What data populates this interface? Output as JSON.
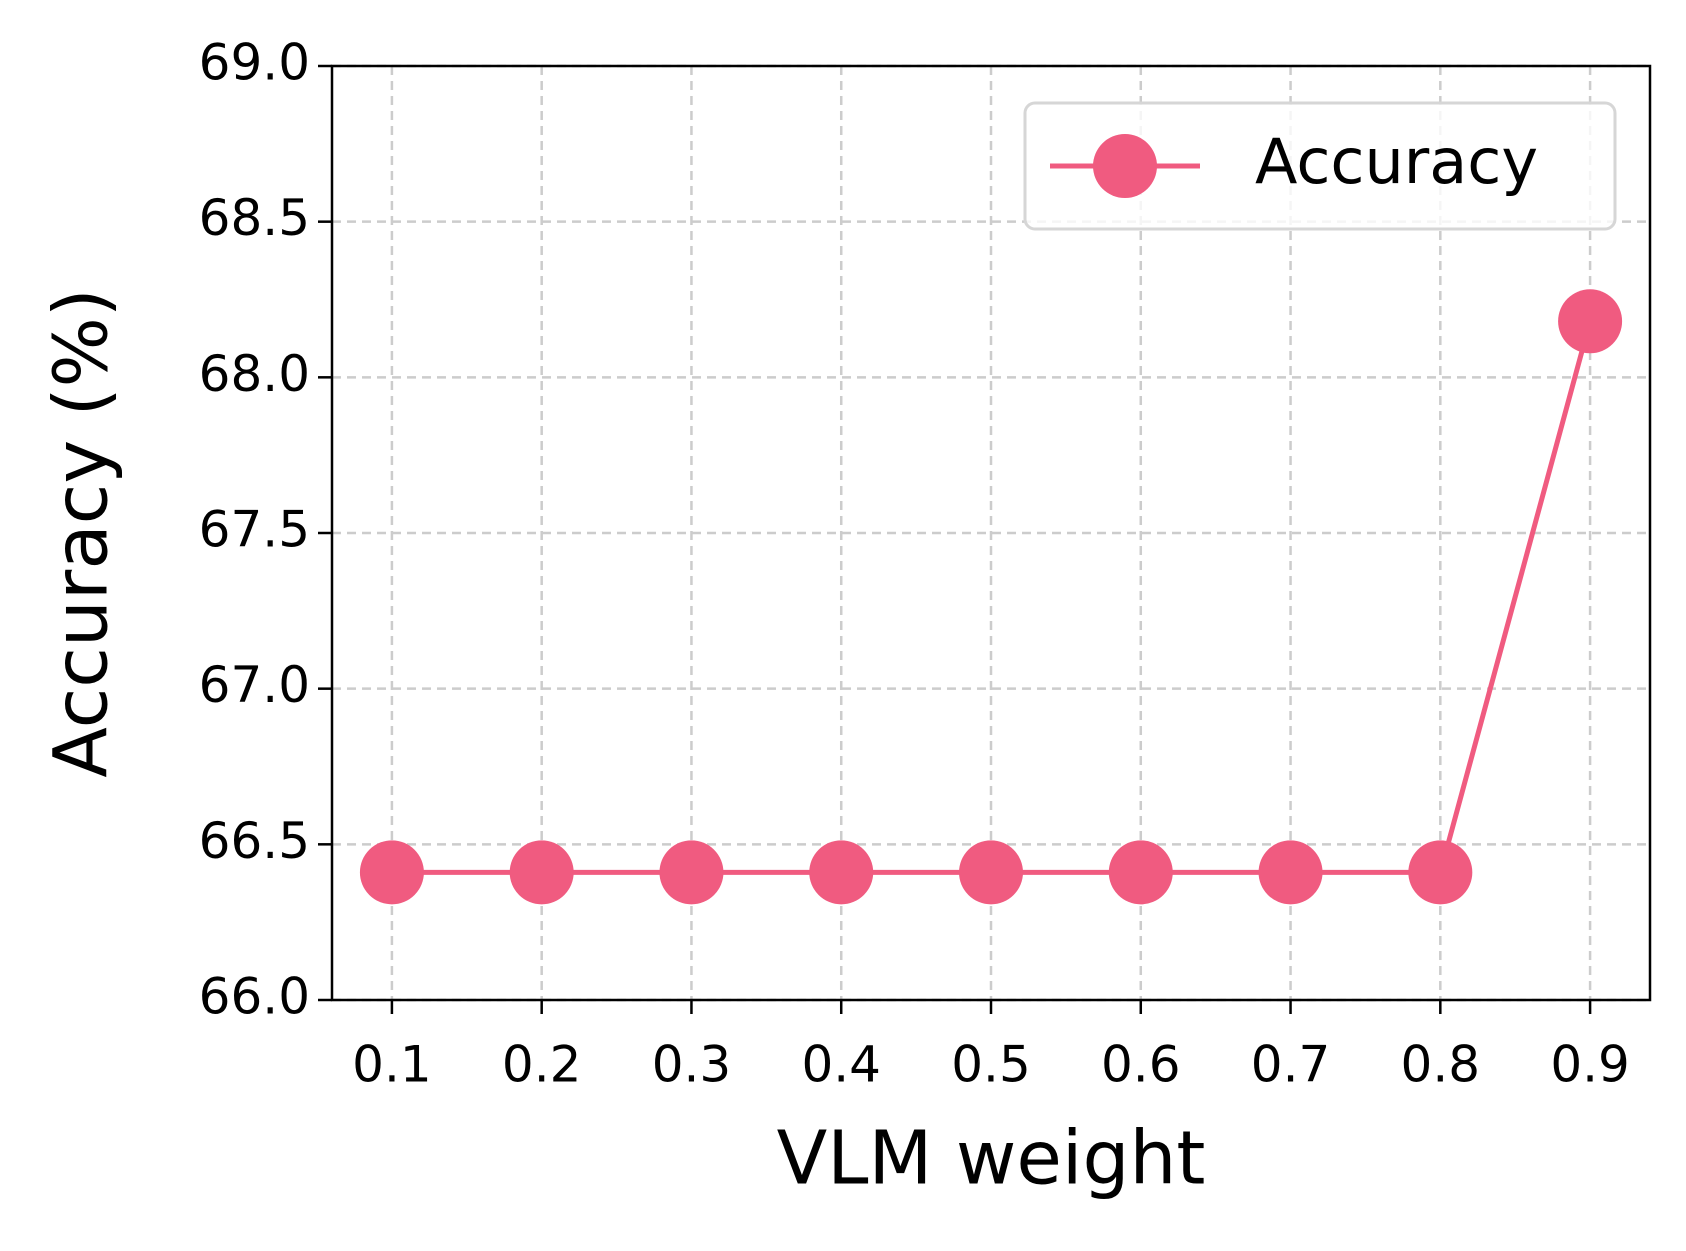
{
  "chart_data": {
    "type": "line",
    "xlabel": "VLM weight",
    "ylabel": "Accuracy (%)",
    "x": [
      0.1,
      0.2,
      0.3,
      0.4,
      0.5,
      0.6,
      0.7,
      0.8,
      0.9
    ],
    "series": [
      {
        "name": "Accuracy",
        "color": "#f05b80",
        "values": [
          66.41,
          66.41,
          66.41,
          66.41,
          66.41,
          66.41,
          66.41,
          66.41,
          68.18
        ]
      }
    ],
    "xlim": [
      0.06,
      0.94
    ],
    "xticks": [
      0.1,
      0.2,
      0.3,
      0.4,
      0.5,
      0.6,
      0.7,
      0.8,
      0.9
    ],
    "ylim": [
      66,
      69
    ],
    "yticks": [
      {
        "value": 66,
        "label": "66.0"
      },
      {
        "value": 66.5,
        "label": "66.5"
      },
      {
        "value": 67,
        "label": "67.0"
      },
      {
        "value": 67.5,
        "label": "67.5"
      },
      {
        "value": 68,
        "label": "68.0"
      },
      {
        "value": 68.5,
        "label": "68.5"
      },
      {
        "value": 69,
        "label": "69.0"
      }
    ],
    "grid": true,
    "legend": "upper right"
  }
}
